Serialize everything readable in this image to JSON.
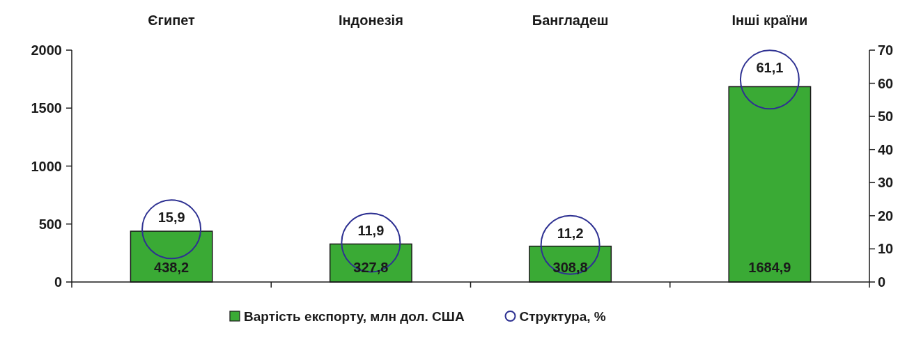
{
  "chart_data": {
    "type": "bar",
    "categories": [
      "Єгипет",
      "Індонезія",
      "Бангладеш",
      "Інші країни"
    ],
    "series": [
      {
        "name": "Вартість експорту, млн дол. США",
        "color": "#3aaa35",
        "values": [
          438.2,
          327.8,
          308.8,
          1684.9
        ],
        "value_labels": [
          "438,2",
          "327,8",
          "308,8",
          "1684,9"
        ]
      },
      {
        "name": "Структура, %",
        "type": "scatter",
        "axis": "y2",
        "marker": "circle",
        "color": "#2e3192",
        "values": [
          15.9,
          11.9,
          11.2,
          61.1
        ],
        "value_labels": [
          "15,9",
          "11,9",
          "11,2",
          "61,1"
        ]
      }
    ],
    "ylim": [
      0,
      2000
    ],
    "yticks": [
      0,
      500,
      1000,
      1500,
      2000
    ],
    "y2lim": [
      0,
      70
    ],
    "y2ticks": [
      0,
      10,
      20,
      30,
      40,
      50,
      60,
      70
    ],
    "legend": "bottom",
    "grid": false
  }
}
